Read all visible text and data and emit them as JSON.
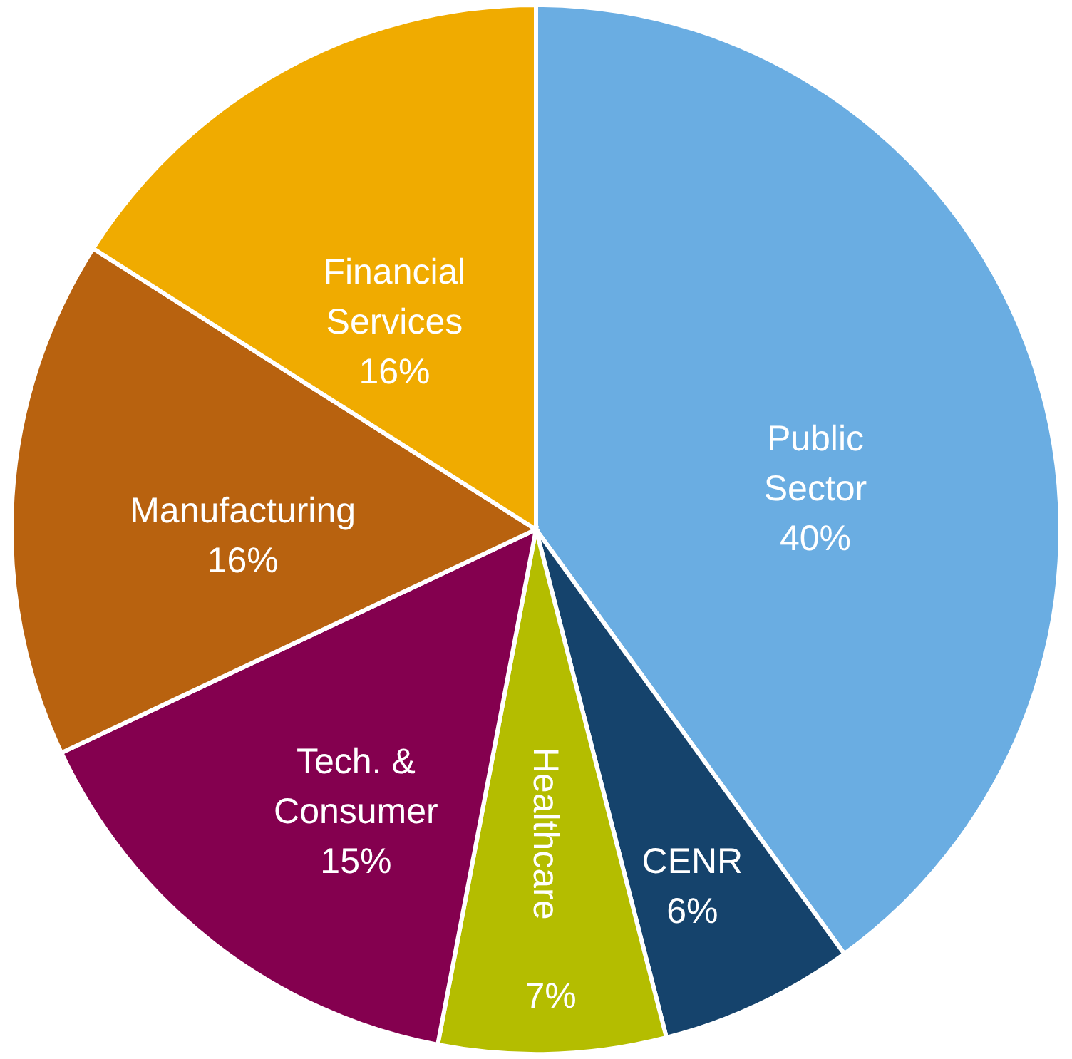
{
  "chart_data": {
    "type": "pie",
    "categories": [
      "Public Sector",
      "CENR",
      "Healthcare",
      "Tech. & Consumer",
      "Manufacturing",
      "Financial Services"
    ],
    "values": [
      40,
      6,
      7,
      15,
      16,
      16
    ],
    "value_labels": [
      "40%",
      "6%",
      "7%",
      "15%",
      "16%",
      "16%"
    ],
    "colors": [
      "#6aade2",
      "#15436c",
      "#b4bd00",
      "#84004f",
      "#b8620f",
      "#f0ab00"
    ]
  }
}
